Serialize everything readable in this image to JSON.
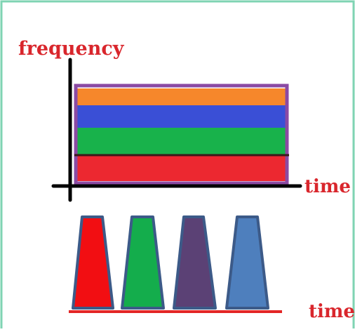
{
  "labels": {
    "y_axis": "frequency",
    "x_axis_top": "time",
    "x_axis_bottom": "time"
  },
  "colors": {
    "border": "#7fd4b3",
    "label": "#d9262c",
    "axis": "#000000",
    "outline": "#8b4aa3",
    "pulse_outline": "#3c5a88",
    "baseline": "#e32626"
  },
  "bands": [
    {
      "name": "orange",
      "color": "#f6872b"
    },
    {
      "name": "blue",
      "color": "#3a4fd6"
    },
    {
      "name": "green",
      "color": "#18b24b"
    },
    {
      "name": "red",
      "color": "#ec2830"
    }
  ],
  "pulses": [
    {
      "name": "red",
      "color": "#f20e12"
    },
    {
      "name": "green",
      "color": "#14ad4c"
    },
    {
      "name": "purple",
      "color": "#5b4175"
    },
    {
      "name": "steel-blue",
      "color": "#4e7fbd"
    }
  ]
}
